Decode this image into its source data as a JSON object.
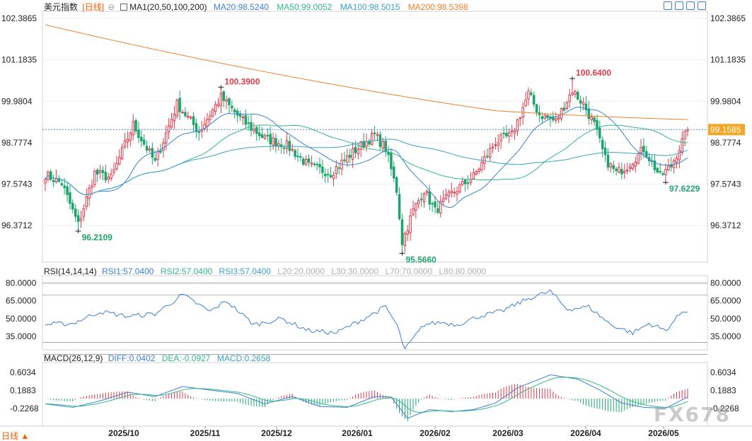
{
  "header": {
    "main": {
      "symbol": "美元指数",
      "period": "[日线]",
      "ma_title": "MA1(20,50,100,200)",
      "ma20": "MA20:98.5240",
      "ma50": "MA50:99.0052",
      "ma100": "MA100:98.5015",
      "ma200": "MA200:98.5398"
    },
    "rsi": {
      "title": "RSI(14,14,14)",
      "rsi1": "RSI1:57.0400",
      "rsi2": "RSI2:57.0400",
      "rsi3": "RSI3:57.0400",
      "l20": "L20:20.0000",
      "l30": "L30:30.0000",
      "l70": "L70:70.0000",
      "l80": "L80:80.0000"
    },
    "macd": {
      "title": "MACD(26,12,9)",
      "diff": "DIFF:0.0402",
      "dea": "DEA:-0.0927",
      "macd": "MACD:0.2658"
    }
  },
  "period_tab": "日线 ▲",
  "watermark": "FX678",
  "colors": {
    "up": "#e03a4a",
    "down": "#1aa66a",
    "ma20": "#3a7fd5",
    "ma50": "#2fb88c",
    "ma100": "#3aa0c8",
    "ma200": "#f08030",
    "last_price_bg": "#f5a623"
  },
  "chart_data": [
    {
      "type": "candlestick",
      "name": "美元指数 日线",
      "y_ticks": [
        102.3865,
        101.1835,
        99.9804,
        98.7774,
        97.5743,
        96.3712
      ],
      "y_tick_labels": [
        "102.3865",
        "101.1835",
        "99.9804",
        "98.7774",
        "97.5743",
        "96.3712"
      ],
      "ylim": [
        95.35,
        102.55
      ],
      "x_ticks": [
        "2025/10",
        "2025/11",
        "2025/12",
        "2026/01",
        "2026/02",
        "2026/03",
        "2026/04",
        "2026/05"
      ],
      "last_price": 99.1585,
      "last_price_label": "99.1585",
      "annotations": [
        {
          "label": "96.2109",
          "value": 96.2109,
          "kind": "low"
        },
        {
          "label": "100.3900",
          "value": 100.39,
          "kind": "high"
        },
        {
          "label": "95.5660",
          "value": 95.566,
          "kind": "low"
        },
        {
          "label": "100.6400",
          "value": 100.64,
          "kind": "high"
        },
        {
          "label": "97.6229",
          "value": 97.6229,
          "kind": "low"
        }
      ],
      "anchors": [
        {
          "i": 0,
          "v": 97.85
        },
        {
          "i": 6,
          "v": 97.6
        },
        {
          "i": 12,
          "v": 96.4
        },
        {
          "i": 18,
          "v": 97.9
        },
        {
          "i": 24,
          "v": 97.75
        },
        {
          "i": 32,
          "v": 99.3
        },
        {
          "i": 40,
          "v": 98.2
        },
        {
          "i": 48,
          "v": 99.9
        },
        {
          "i": 56,
          "v": 99.1
        },
        {
          "i": 64,
          "v": 100.1
        },
        {
          "i": 72,
          "v": 99.4
        },
        {
          "i": 80,
          "v": 98.9
        },
        {
          "i": 88,
          "v": 98.7
        },
        {
          "i": 96,
          "v": 98.1
        },
        {
          "i": 104,
          "v": 97.9
        },
        {
          "i": 112,
          "v": 98.5
        },
        {
          "i": 120,
          "v": 99.0
        },
        {
          "i": 124,
          "v": 98.6
        },
        {
          "i": 128,
          "v": 97.4
        },
        {
          "i": 130,
          "v": 95.9
        },
        {
          "i": 134,
          "v": 96.8
        },
        {
          "i": 138,
          "v": 97.4
        },
        {
          "i": 142,
          "v": 96.8
        },
        {
          "i": 148,
          "v": 97.3
        },
        {
          "i": 156,
          "v": 97.8
        },
        {
          "i": 160,
          "v": 98.3
        },
        {
          "i": 164,
          "v": 98.8
        },
        {
          "i": 170,
          "v": 99.0
        },
        {
          "i": 176,
          "v": 100.2
        },
        {
          "i": 180,
          "v": 99.6
        },
        {
          "i": 186,
          "v": 99.4
        },
        {
          "i": 192,
          "v": 100.3
        },
        {
          "i": 196,
          "v": 99.9
        },
        {
          "i": 200,
          "v": 99.3
        },
        {
          "i": 204,
          "v": 98.3
        },
        {
          "i": 208,
          "v": 97.9
        },
        {
          "i": 212,
          "v": 98.1
        },
        {
          "i": 218,
          "v": 98.6
        },
        {
          "i": 224,
          "v": 97.8
        },
        {
          "i": 228,
          "v": 98.1
        },
        {
          "i": 234,
          "v": 99.15
        }
      ]
    },
    {
      "type": "line",
      "name": "RSI(14,14,14)",
      "y_ticks": [
        80,
        65,
        50,
        35
      ],
      "y_tick_labels": [
        "80.0000",
        "65.0000",
        "50.0000",
        "35.0000"
      ],
      "ylim": [
        25,
        85
      ],
      "reference_lines": [
        80,
        70,
        30,
        20
      ],
      "anchors": [
        {
          "i": 0,
          "v": 45
        },
        {
          "i": 10,
          "v": 46
        },
        {
          "i": 20,
          "v": 56
        },
        {
          "i": 30,
          "v": 52
        },
        {
          "i": 40,
          "v": 54
        },
        {
          "i": 50,
          "v": 70
        },
        {
          "i": 60,
          "v": 56
        },
        {
          "i": 66,
          "v": 65
        },
        {
          "i": 76,
          "v": 45
        },
        {
          "i": 86,
          "v": 50
        },
        {
          "i": 96,
          "v": 40
        },
        {
          "i": 106,
          "v": 38
        },
        {
          "i": 116,
          "v": 50
        },
        {
          "i": 124,
          "v": 60
        },
        {
          "i": 128,
          "v": 45
        },
        {
          "i": 131,
          "v": 24
        },
        {
          "i": 138,
          "v": 45
        },
        {
          "i": 144,
          "v": 47
        },
        {
          "i": 150,
          "v": 45
        },
        {
          "i": 158,
          "v": 52
        },
        {
          "i": 166,
          "v": 56
        },
        {
          "i": 176,
          "v": 67
        },
        {
          "i": 184,
          "v": 73
        },
        {
          "i": 190,
          "v": 58
        },
        {
          "i": 198,
          "v": 60
        },
        {
          "i": 206,
          "v": 45
        },
        {
          "i": 214,
          "v": 38
        },
        {
          "i": 220,
          "v": 46
        },
        {
          "i": 226,
          "v": 40
        },
        {
          "i": 232,
          "v": 56
        },
        {
          "i": 234,
          "v": 57
        }
      ]
    },
    {
      "type": "bar",
      "name": "MACD(26,12,9)",
      "y_ticks": [
        0.6034,
        0.1883,
        -0.2268
      ],
      "y_tick_labels": [
        "0.6034",
        "0.1883",
        "-0.2268"
      ],
      "ylim": [
        -0.6,
        0.8
      ],
      "diff_anchors": [
        {
          "i": 0,
          "v": -0.12
        },
        {
          "i": 10,
          "v": -0.2
        },
        {
          "i": 20,
          "v": -0.05
        },
        {
          "i": 30,
          "v": 0.15
        },
        {
          "i": 40,
          "v": 0.05
        },
        {
          "i": 50,
          "v": 0.28
        },
        {
          "i": 60,
          "v": 0.2
        },
        {
          "i": 70,
          "v": 0.12
        },
        {
          "i": 80,
          "v": -0.12
        },
        {
          "i": 90,
          "v": 0.05
        },
        {
          "i": 100,
          "v": -0.18
        },
        {
          "i": 110,
          "v": -0.2
        },
        {
          "i": 120,
          "v": 0.05
        },
        {
          "i": 126,
          "v": 0.04
        },
        {
          "i": 132,
          "v": -0.45
        },
        {
          "i": 140,
          "v": -0.25
        },
        {
          "i": 148,
          "v": -0.3
        },
        {
          "i": 156,
          "v": -0.25
        },
        {
          "i": 164,
          "v": -0.1
        },
        {
          "i": 172,
          "v": 0.25
        },
        {
          "i": 184,
          "v": 0.55
        },
        {
          "i": 194,
          "v": 0.45
        },
        {
          "i": 202,
          "v": 0.2
        },
        {
          "i": 210,
          "v": -0.1
        },
        {
          "i": 218,
          "v": -0.2
        },
        {
          "i": 226,
          "v": -0.22
        },
        {
          "i": 234,
          "v": 0.04
        }
      ]
    }
  ]
}
